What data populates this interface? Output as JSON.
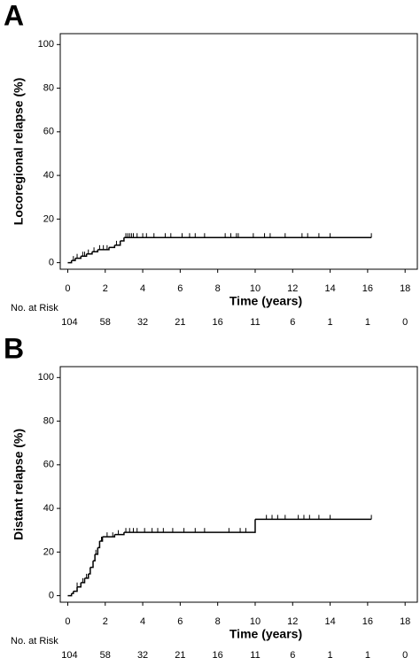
{
  "chart_data": [
    {
      "type": "step",
      "panel_label": "A",
      "ylabel": "Locoregional relapse (%)",
      "xlabel": "Time (years)",
      "x": [
        0,
        0.2,
        0.4,
        0.7,
        1.0,
        1.3,
        1.6,
        2.2,
        2.5,
        2.8,
        3.0,
        16.2
      ],
      "y": [
        0,
        1,
        2,
        3,
        4,
        5,
        6,
        7,
        8,
        10,
        11.5,
        11.5
      ],
      "censor": [
        0.3,
        0.5,
        0.8,
        0.9,
        1.1,
        1.4,
        1.7,
        1.9,
        2.1,
        2.6,
        3.1,
        3.2,
        3.3,
        3.4,
        3.5,
        3.7,
        4.0,
        4.2,
        4.6,
        5.2,
        5.5,
        6.1,
        6.5,
        6.8,
        7.3,
        8.4,
        8.7,
        9.0,
        9.1,
        9.9,
        10.5,
        10.8,
        11.6,
        12.5,
        12.8,
        13.4,
        14.0,
        16.2
      ],
      "color": "#000000",
      "xlim": [
        -0.4,
        18.7
      ],
      "ylim": [
        -3,
        105
      ],
      "xticks": [
        0,
        2,
        4,
        6,
        8,
        10,
        12,
        14,
        16,
        18
      ],
      "yticks": [
        0,
        20,
        40,
        60,
        80,
        100
      ],
      "risk_label": "No. at Risk",
      "risk_counts": [
        104,
        58,
        32,
        21,
        16,
        11,
        6,
        1,
        1,
        0
      ]
    },
    {
      "type": "step",
      "panel_label": "B",
      "ylabel": "Distant relapse (%)",
      "xlabel": "Time (years)",
      "x": [
        0,
        0.2,
        0.3,
        0.5,
        0.7,
        0.9,
        1.1,
        1.2,
        1.35,
        1.45,
        1.6,
        1.7,
        1.85,
        2.5,
        3.0,
        10.0,
        16.2
      ],
      "y": [
        0,
        1,
        2,
        4,
        6,
        8,
        10,
        13,
        16,
        19,
        22,
        25,
        27,
        28,
        29,
        35,
        35
      ],
      "censor": [
        0.5,
        0.8,
        1.0,
        1.5,
        1.8,
        2.1,
        2.4,
        2.7,
        3.1,
        3.3,
        3.5,
        3.7,
        4.1,
        4.5,
        4.8,
        5.1,
        5.6,
        6.2,
        6.8,
        7.3,
        8.6,
        9.2,
        9.5,
        10.6,
        10.9,
        11.2,
        11.6,
        12.3,
        12.6,
        12.9,
        13.4,
        14.0,
        16.2
      ],
      "color": "#000000",
      "xlim": [
        -0.4,
        18.7
      ],
      "ylim": [
        -3,
        105
      ],
      "xticks": [
        0,
        2,
        4,
        6,
        8,
        10,
        12,
        14,
        16,
        18
      ],
      "yticks": [
        0,
        20,
        40,
        60,
        80,
        100
      ],
      "risk_label": "No. at Risk",
      "risk_counts": [
        104,
        58,
        32,
        21,
        16,
        11,
        6,
        1,
        1,
        0
      ]
    }
  ]
}
